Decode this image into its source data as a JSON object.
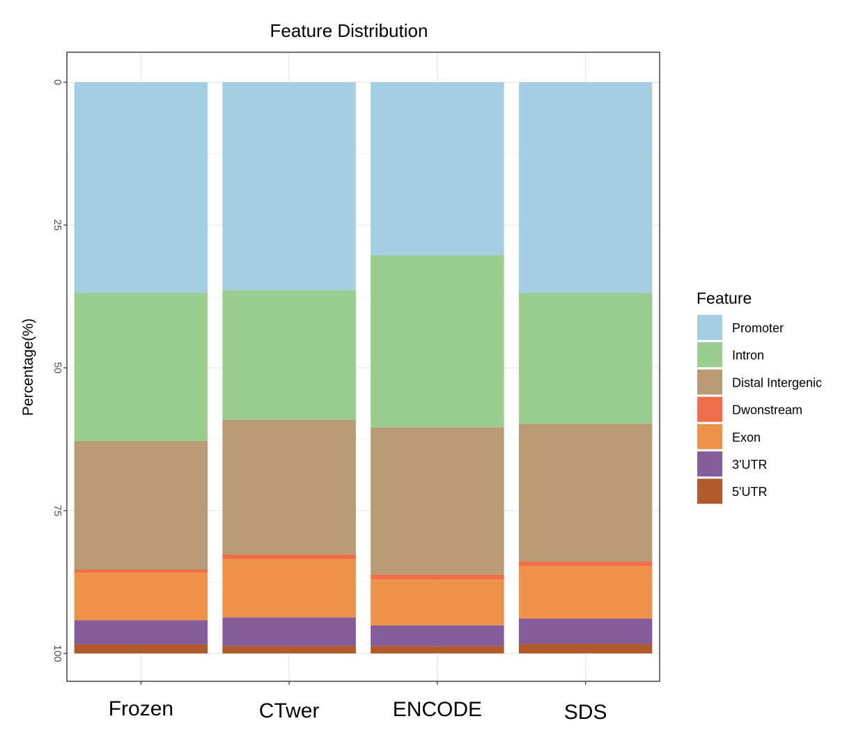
{
  "chart_data": {
    "type": "bar",
    "stacked": true,
    "title": "Feature Distribution",
    "ylabel": "Percentage(%)",
    "xlabel": "",
    "y_reversed": true,
    "ylim": [
      0,
      100
    ],
    "yticks": [
      "0",
      "25",
      "50",
      "75",
      "100"
    ],
    "grid": true,
    "legend_position": "right",
    "legend_title": "Feature",
    "categories": [
      "Frozen",
      "CTwer",
      "ENCODE",
      "SDS"
    ],
    "series": [
      {
        "name": "Promoter",
        "color": "#A6CEE3",
        "values": [
          36.9,
          36.4,
          30.3,
          36.9
        ]
      },
      {
        "name": "Intron",
        "color": "#9ACD8F",
        "values": [
          25.9,
          22.7,
          30.1,
          22.9
        ]
      },
      {
        "name": "Distal Intergenic",
        "color": "#B89B74",
        "values": [
          22.5,
          23.6,
          25.8,
          24.1
        ]
      },
      {
        "name": "Dwonstream",
        "color": "#EF6E49",
        "values": [
          0.6,
          0.8,
          0.9,
          0.8
        ]
      },
      {
        "name": "Exon",
        "color": "#EE9149",
        "values": [
          8.3,
          10.2,
          8.0,
          9.2
        ]
      },
      {
        "name": "3'UTR",
        "color": "#855D9C",
        "values": [
          4.2,
          5.0,
          3.6,
          4.4
        ]
      },
      {
        "name": "5'UTR",
        "color": "#B15A2B",
        "values": [
          1.6,
          1.3,
          1.3,
          1.7
        ]
      }
    ]
  }
}
